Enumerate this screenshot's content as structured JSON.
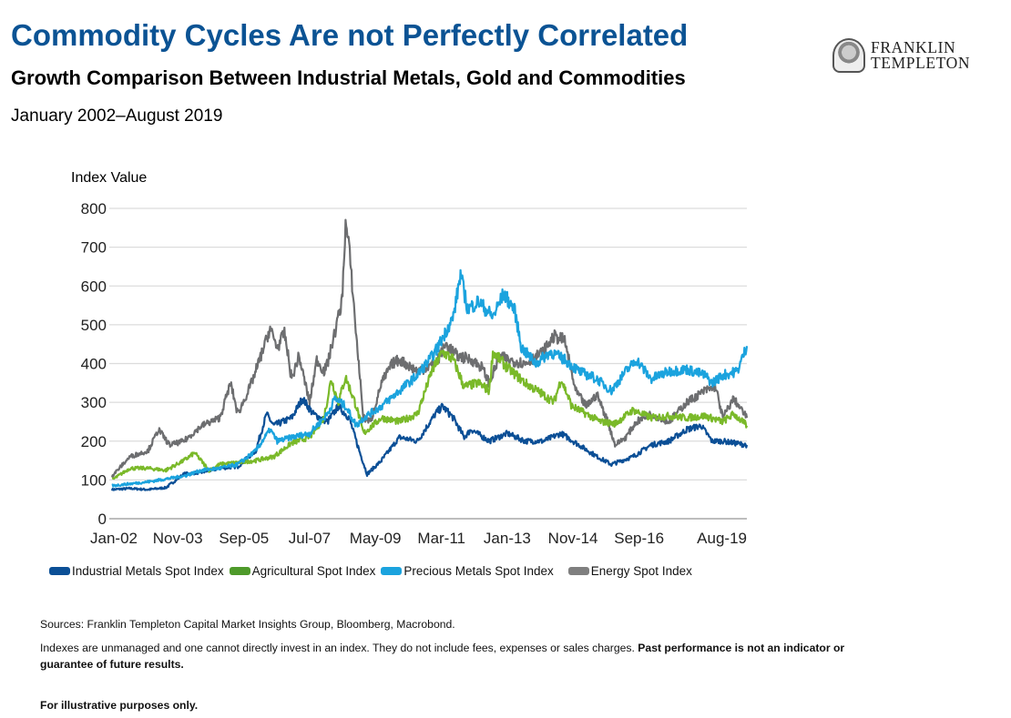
{
  "header": {
    "title": "Commodity Cycles Are not Perfectly Correlated",
    "subtitle": "Growth Comparison Between Industrial Metals, Gold and Commodities",
    "date_range": "January 2002–August 2019"
  },
  "logo": {
    "line1": "FRANKLIN",
    "line2": "TEMPLETON"
  },
  "footer": {
    "sources": "Sources: Franklin Templeton Capital Market Insights Group, Bloomberg, Macrobond.",
    "disclaimer_regular": "Indexes are unmanaged and one cannot directly invest in an index. They do not include fees, expenses or sales charges. ",
    "disclaimer_bold_1": "Past performance is not an indicator or",
    "disclaimer_bold_2": "guarantee of future results.",
    "illustrative": "For illustrative purposes only."
  },
  "chart_data": {
    "type": "line",
    "title": "Commodity Cycles Are not Perfectly Correlated",
    "xlabel": "",
    "ylabel": "Index Value",
    "ylim": [
      0,
      800
    ],
    "yticks": [
      0,
      100,
      200,
      300,
      400,
      500,
      600,
      700,
      800
    ],
    "xlim": [
      2002.0,
      2019.67
    ],
    "xtick_labels": [
      "Jan-02",
      "Nov-03",
      "Sep-05",
      "Jul-07",
      "May-09",
      "Mar-11",
      "Jan-13",
      "Nov-14",
      "Sep-16",
      "Aug-19"
    ],
    "xtick_positions": [
      2002.0,
      2003.83,
      2005.67,
      2007.5,
      2009.33,
      2011.17,
      2013.0,
      2014.83,
      2016.67,
      2019.58
    ],
    "grid": "horizontal",
    "legend_position": "bottom",
    "series": [
      {
        "name": "Industrial Metals Spot Index",
        "color": "#0b4f96",
        "x": [
          2002.0,
          2002.5,
          2003.0,
          2003.5,
          2004.0,
          2004.5,
          2005.0,
          2005.5,
          2006.0,
          2006.3,
          2006.5,
          2007.0,
          2007.3,
          2007.6,
          2008.0,
          2008.3,
          2008.6,
          2008.9,
          2009.1,
          2009.5,
          2010.0,
          2010.5,
          2011.0,
          2011.2,
          2011.5,
          2011.8,
          2012.0,
          2012.5,
          2013.0,
          2013.5,
          2014.0,
          2014.5,
          2015.0,
          2015.5,
          2015.9,
          2016.5,
          2017.0,
          2017.5,
          2018.0,
          2018.4,
          2018.7,
          2019.0,
          2019.67
        ],
        "y": [
          75,
          78,
          75,
          80,
          115,
          120,
          130,
          135,
          175,
          270,
          240,
          260,
          310,
          270,
          250,
          290,
          260,
          170,
          115,
          150,
          210,
          200,
          270,
          290,
          260,
          210,
          230,
          200,
          220,
          200,
          200,
          220,
          190,
          160,
          140,
          160,
          190,
          200,
          230,
          240,
          200,
          200,
          190
        ]
      },
      {
        "name": "Agricultural Spot Index",
        "color": "#7ab929",
        "x": [
          2002.0,
          2002.5,
          2003.0,
          2003.5,
          2004.0,
          2004.3,
          2004.7,
          2005.0,
          2005.5,
          2006.0,
          2006.5,
          2007.0,
          2007.5,
          2007.9,
          2008.1,
          2008.3,
          2008.5,
          2008.8,
          2009.0,
          2009.5,
          2010.0,
          2010.5,
          2010.9,
          2011.2,
          2011.5,
          2011.8,
          2012.2,
          2012.5,
          2012.6,
          2013.0,
          2013.5,
          2014.0,
          2014.3,
          2014.5,
          2014.8,
          2015.2,
          2015.6,
          2016.0,
          2016.5,
          2017.0,
          2017.5,
          2018.0,
          2018.5,
          2019.0,
          2019.3,
          2019.67
        ],
        "y": [
          100,
          130,
          130,
          125,
          150,
          170,
          125,
          140,
          145,
          150,
          160,
          195,
          210,
          260,
          360,
          300,
          365,
          290,
          220,
          260,
          250,
          270,
          380,
          430,
          410,
          340,
          350,
          330,
          430,
          390,
          350,
          320,
          300,
          360,
          290,
          270,
          250,
          245,
          280,
          260,
          265,
          260,
          265,
          250,
          270,
          240
        ]
      },
      {
        "name": "Precious Metals Spot Index",
        "color": "#1ba3de",
        "x": [
          2002.0,
          2003.0,
          2004.0,
          2004.5,
          2005.0,
          2005.5,
          2006.0,
          2006.4,
          2006.6,
          2007.0,
          2007.5,
          2008.0,
          2008.2,
          2008.5,
          2008.8,
          2009.0,
          2009.5,
          2010.0,
          2010.5,
          2011.0,
          2011.5,
          2011.7,
          2011.9,
          2012.2,
          2012.6,
          2012.9,
          2013.2,
          2013.4,
          2013.8,
          2014.2,
          2014.6,
          2015.0,
          2015.5,
          2015.9,
          2016.3,
          2016.6,
          2017.0,
          2017.5,
          2018.0,
          2018.5,
          2018.7,
          2019.0,
          2019.4,
          2019.67
        ],
        "y": [
          85,
          95,
          110,
          125,
          130,
          140,
          175,
          230,
          200,
          210,
          220,
          270,
          310,
          290,
          240,
          260,
          290,
          330,
          370,
          430,
          520,
          630,
          540,
          560,
          520,
          580,
          540,
          440,
          400,
          430,
          410,
          380,
          360,
          330,
          380,
          410,
          360,
          380,
          385,
          370,
          350,
          370,
          380,
          445
        ]
      },
      {
        "name": "Energy Spot Index",
        "color": "#6d6e70",
        "x": [
          2002.0,
          2002.5,
          2003.0,
          2003.3,
          2003.6,
          2004.0,
          2004.5,
          2005.0,
          2005.3,
          2005.5,
          2005.8,
          2006.0,
          2006.4,
          2006.6,
          2006.8,
          2007.0,
          2007.2,
          2007.5,
          2007.7,
          2007.9,
          2008.0,
          2008.2,
          2008.4,
          2008.5,
          2008.6,
          2008.8,
          2009.0,
          2009.2,
          2009.5,
          2009.8,
          2010.0,
          2010.5,
          2011.0,
          2011.3,
          2011.6,
          2012.0,
          2012.3,
          2012.5,
          2012.8,
          2013.0,
          2013.5,
          2014.0,
          2014.3,
          2014.6,
          2014.9,
          2015.2,
          2015.5,
          2015.8,
          2016.0,
          2016.3,
          2016.6,
          2017.0,
          2017.5,
          2018.0,
          2018.5,
          2018.8,
          2019.0,
          2019.3,
          2019.67
        ],
        "y": [
          110,
          160,
          175,
          230,
          190,
          200,
          240,
          260,
          350,
          270,
          330,
          380,
          490,
          440,
          480,
          360,
          420,
          300,
          410,
          380,
          400,
          480,
          560,
          760,
          700,
          470,
          260,
          250,
          350,
          400,
          410,
          380,
          400,
          450,
          420,
          410,
          390,
          350,
          420,
          410,
          400,
          430,
          470,
          460,
          330,
          290,
          320,
          250,
          190,
          210,
          250,
          270,
          250,
          300,
          330,
          340,
          260,
          310,
          260
        ]
      }
    ]
  }
}
